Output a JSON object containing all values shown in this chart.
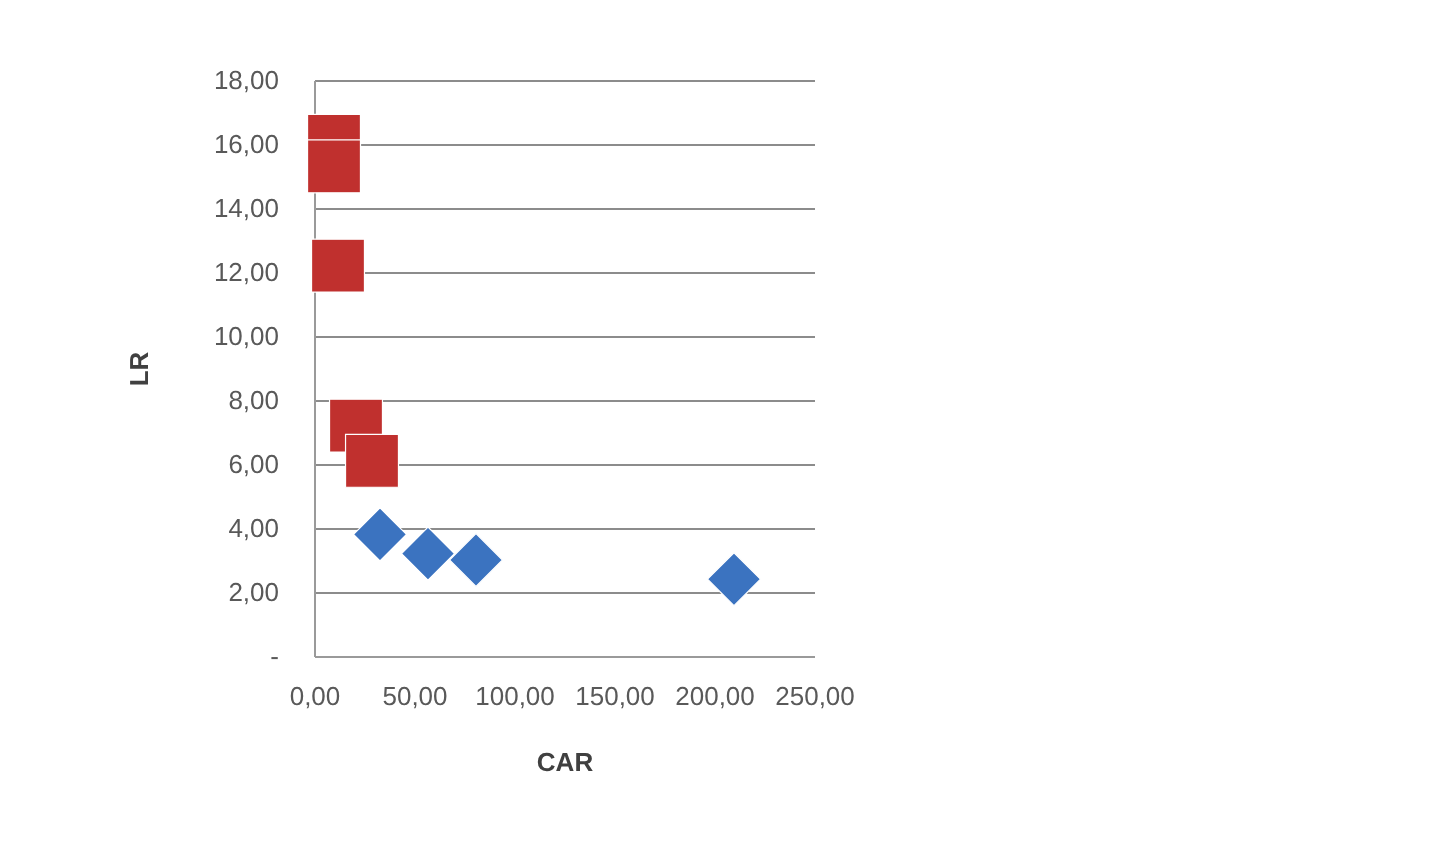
{
  "chart_data": {
    "type": "scatter",
    "xlabel": "CAR",
    "ylabel": "LR",
    "grid": "y",
    "xlim": [
      0,
      250
    ],
    "xticks": [
      {
        "value": 0,
        "label": "0,00"
      },
      {
        "value": 50,
        "label": "50,00"
      },
      {
        "value": 100,
        "label": "100,00"
      },
      {
        "value": 150,
        "label": "150,00"
      },
      {
        "value": 200,
        "label": "200,00"
      },
      {
        "value": 250,
        "label": "250,00"
      }
    ],
    "ylim": [
      0,
      18
    ],
    "yticks": [
      {
        "value": 0,
        "label": "-"
      },
      {
        "value": 2,
        "label": "2,00"
      },
      {
        "value": 4,
        "label": "4,00"
      },
      {
        "value": 6,
        "label": "6,00"
      },
      {
        "value": 8,
        "label": "8,00"
      },
      {
        "value": 10,
        "label": "10,00"
      },
      {
        "value": 12,
        "label": "12,00"
      },
      {
        "value": 14,
        "label": "14,00"
      },
      {
        "value": 16,
        "label": "16,00"
      },
      {
        "value": 18,
        "label": "18,00"
      }
    ],
    "series": [
      {
        "color": "#3b73c0",
        "marker": "diamond",
        "x": [
          33,
          57,
          81,
          210
        ],
        "values": [
          3.8,
          3.2,
          3.0,
          2.4
        ]
      },
      {
        "color": "#c0302e",
        "marker": "square",
        "x": [
          10,
          10,
          12,
          21,
          29
        ],
        "values": [
          16.1,
          15.3,
          12.2,
          7.2,
          6.1
        ]
      }
    ]
  }
}
